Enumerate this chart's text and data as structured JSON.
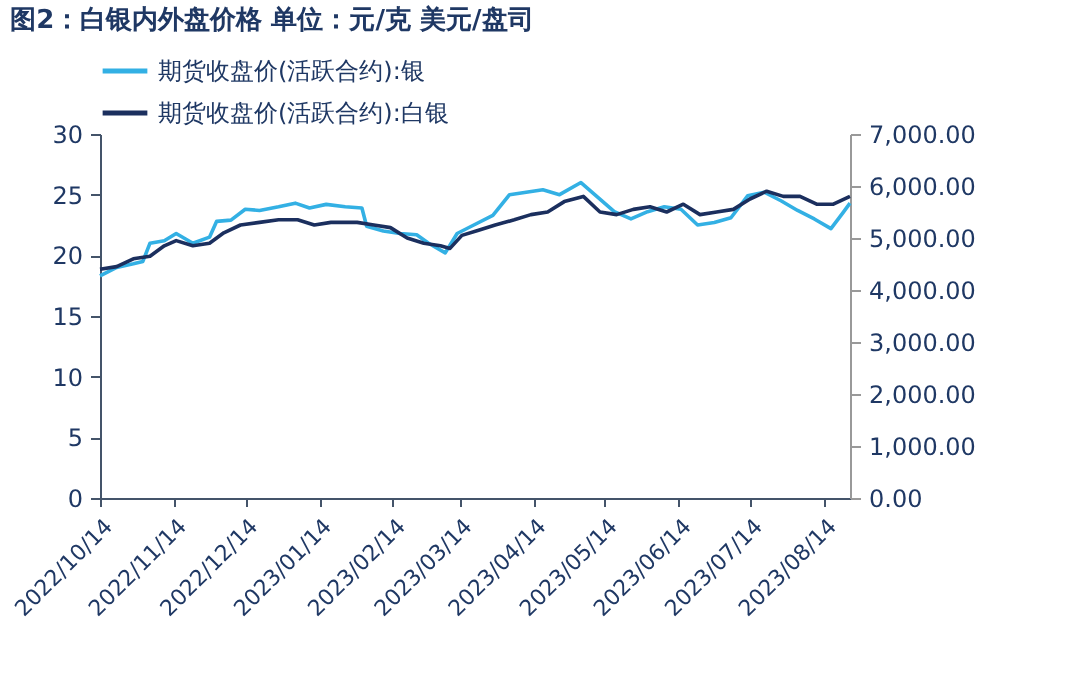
{
  "chart_data": {
    "type": "line",
    "title": "图2：白银内外盘价格 单位：元/克 美元/盘司",
    "x": [
      "2022-10-14",
      "2022-10-21",
      "2022-10-28",
      "2022-11-01",
      "2022-11-04",
      "2022-11-10",
      "2022-11-15",
      "2022-11-22",
      "2022-11-29",
      "2022-12-02",
      "2022-12-08",
      "2022-12-14",
      "2022-12-20",
      "2022-12-28",
      "2023-01-04",
      "2023-01-10",
      "2023-01-17",
      "2023-01-25",
      "2023-02-01",
      "2023-02-03",
      "2023-02-10",
      "2023-02-17",
      "2023-02-24",
      "2023-03-01",
      "2023-03-08",
      "2023-03-13",
      "2023-03-20",
      "2023-03-28",
      "2023-04-04",
      "2023-04-11",
      "2023-04-18",
      "2023-04-25",
      "2023-05-04",
      "2023-05-11",
      "2023-05-18",
      "2023-05-25",
      "2023-06-01",
      "2023-06-08",
      "2023-06-15",
      "2023-06-22",
      "2023-06-29",
      "2023-07-06",
      "2023-07-13",
      "2023-07-20",
      "2023-07-27",
      "2023-08-03",
      "2023-08-10",
      "2023-08-17",
      "2023-08-22",
      "2023-08-25"
    ],
    "series": [
      {
        "name": "期货收盘价(活跃合约):银",
        "color": "#33b0e4",
        "values": [
          18.3,
          19.0,
          19.3,
          19.5,
          21.0,
          21.2,
          21.8,
          21.0,
          21.5,
          22.8,
          22.9,
          23.8,
          23.7,
          24.0,
          24.3,
          23.9,
          24.2,
          24.0,
          23.9,
          22.4,
          22.0,
          21.8,
          21.7,
          21.0,
          20.2,
          21.8,
          22.5,
          23.3,
          25.0,
          25.2,
          25.4,
          25.0,
          26.0,
          24.8,
          23.6,
          23.0,
          23.6,
          24.0,
          23.8,
          22.5,
          22.7,
          23.1,
          24.9,
          25.2,
          24.5,
          23.7,
          23.0,
          22.2,
          23.5,
          24.3
        ]
      },
      {
        "name": "期货收盘价(活跃合约):白银",
        "color": "#1b2f5e",
        "axis": "y2",
        "x": [
          "2022-10-14",
          "2022-10-21",
          "2022-10-28",
          "2022-11-04",
          "2022-11-10",
          "2022-11-15",
          "2022-11-22",
          "2022-11-29",
          "2022-12-05",
          "2022-12-12",
          "2022-12-20",
          "2022-12-28",
          "2023-01-05",
          "2023-01-12",
          "2023-01-19",
          "2023-01-30",
          "2023-02-06",
          "2023-02-13",
          "2023-02-20",
          "2023-02-27",
          "2023-03-06",
          "2023-03-10",
          "2023-03-15",
          "2023-03-22",
          "2023-03-29",
          "2023-04-06",
          "2023-04-13",
          "2023-04-20",
          "2023-04-27",
          "2023-05-05",
          "2023-05-12",
          "2023-05-19",
          "2023-05-26",
          "2023-06-02",
          "2023-06-09",
          "2023-06-16",
          "2023-06-23",
          "2023-06-30",
          "2023-07-07",
          "2023-07-14",
          "2023-07-21",
          "2023-07-28",
          "2023-08-04",
          "2023-08-11",
          "2023-08-18",
          "2023-08-25"
        ],
        "values": [
          4400,
          4450,
          4600,
          4650,
          4850,
          4950,
          4850,
          4900,
          5100,
          5250,
          5300,
          5350,
          5350,
          5250,
          5300,
          5300,
          5250,
          5200,
          5000,
          4900,
          4850,
          4800,
          5050,
          5150,
          5250,
          5350,
          5450,
          5500,
          5700,
          5800,
          5500,
          5450,
          5550,
          5600,
          5500,
          5650,
          5450,
          5500,
          5550,
          5750,
          5900,
          5800,
          5800,
          5650,
          5650,
          5800
        ]
      }
    ],
    "xlim": [
      "2022-10-14",
      "2023-08-25"
    ],
    "xticks": [
      {
        "value": "2022-10-14",
        "label": "2022/10/14"
      },
      {
        "value": "2022-11-14",
        "label": "2022/11/14"
      },
      {
        "value": "2022-12-14",
        "label": "2022/12/14"
      },
      {
        "value": "2023-01-14",
        "label": "2023/01/14"
      },
      {
        "value": "2023-02-14",
        "label": "2023/02/14"
      },
      {
        "value": "2023-03-14",
        "label": "2023/03/14"
      },
      {
        "value": "2023-04-14",
        "label": "2023/04/14"
      },
      {
        "value": "2023-05-14",
        "label": "2023/05/14"
      },
      {
        "value": "2023-06-14",
        "label": "2023/06/14"
      },
      {
        "value": "2023-07-14",
        "label": "2023/07/14"
      },
      {
        "value": "2023-08-14",
        "label": "2023/08/14"
      }
    ],
    "ylim": [
      0,
      30
    ],
    "yticks": [
      0,
      5,
      10,
      15,
      20,
      25,
      30
    ],
    "y2lim": [
      0,
      7000
    ],
    "y2ticks": [
      {
        "value": 0,
        "label": "0.00"
      },
      {
        "value": 1000,
        "label": "1,000.00"
      },
      {
        "value": 2000,
        "label": "2,000.00"
      },
      {
        "value": 3000,
        "label": "3,000.00"
      },
      {
        "value": 4000,
        "label": "4,000.00"
      },
      {
        "value": 5000,
        "label": "5,000.00"
      },
      {
        "value": 6000,
        "label": "6,000.00"
      },
      {
        "value": 7000,
        "label": "7,000.00"
      }
    ],
    "legend": "top",
    "grid": false,
    "line_style": "solid"
  }
}
